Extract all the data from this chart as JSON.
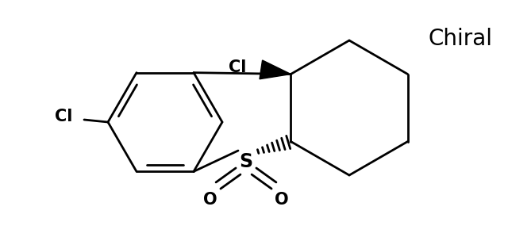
{
  "background_color": "#ffffff",
  "line_color": "#000000",
  "line_width": 2.0,
  "text_color": "#000000",
  "chiral_label": "Chiral",
  "cl_label": "Cl",
  "s_label": "S",
  "o_label": "O",
  "font_size_atoms": 15,
  "font_size_s": 17,
  "font_size_chiral": 20,
  "figsize": [
    6.4,
    3.04
  ],
  "dpi": 100,
  "xlim": [
    0,
    640
  ],
  "ylim": [
    0,
    304
  ]
}
